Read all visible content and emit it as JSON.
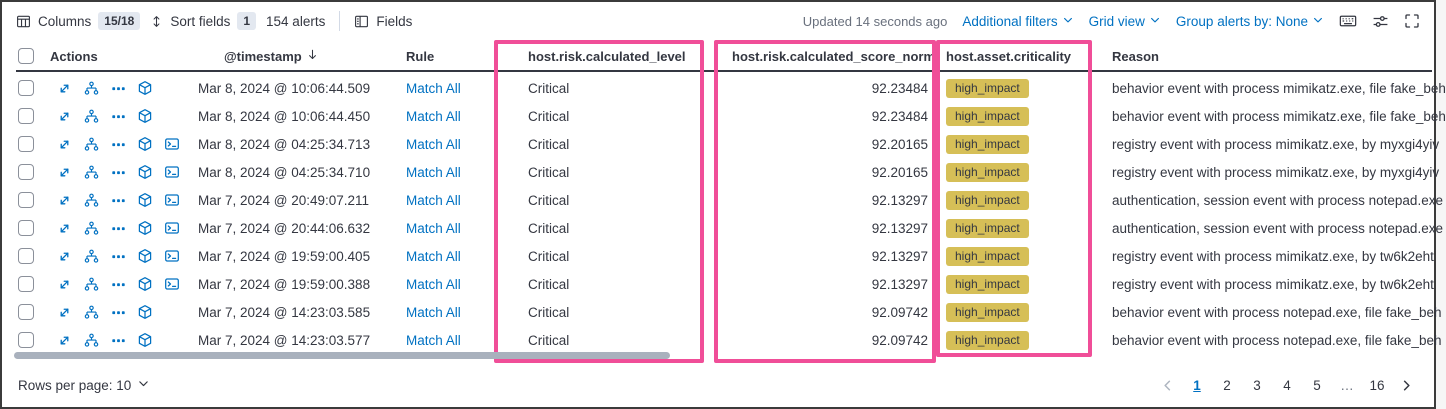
{
  "colors": {
    "accent_pink": "#F04E98",
    "link_blue": "#0071C2",
    "badge_yellow": "#D6BF57"
  },
  "toolbar": {
    "columns_label": "Columns",
    "columns_badge": "15/18",
    "sort_label": "Sort fields",
    "sort_badge": "1",
    "alerts_count": "154 alerts",
    "fields_label": "Fields",
    "updated": "Updated 14 seconds ago",
    "additional_filters_label": "Additional filters",
    "grid_view_label": "Grid view",
    "group_alerts_label": "Group alerts by: None"
  },
  "table": {
    "headers": {
      "actions": "Actions",
      "timestamp": "@timestamp",
      "rule": "Rule",
      "risk_level": "host.risk.calculated_level",
      "risk_score": "host.risk.calculated_score_norm",
      "criticality": "host.asset.criticality",
      "reason": "Reason"
    },
    "rows": [
      {
        "timestamp": "Mar 8, 2024 @ 10:06:44.509",
        "rule": "Match All",
        "level": "Critical",
        "score": "92.23484",
        "criticality": "high_impact",
        "reason": "behavior event with process mimikatz.exe, file fake_beh",
        "has_terminal": false
      },
      {
        "timestamp": "Mar 8, 2024 @ 10:06:44.450",
        "rule": "Match All",
        "level": "Critical",
        "score": "92.23484",
        "criticality": "high_impact",
        "reason": "behavior event with process mimikatz.exe, file fake_beh",
        "has_terminal": false
      },
      {
        "timestamp": "Mar 8, 2024 @ 04:25:34.713",
        "rule": "Match All",
        "level": "Critical",
        "score": "92.20165",
        "criticality": "high_impact",
        "reason": "registry event with process mimikatz.exe, by myxgi4yiv",
        "has_terminal": true
      },
      {
        "timestamp": "Mar 8, 2024 @ 04:25:34.710",
        "rule": "Match All",
        "level": "Critical",
        "score": "92.20165",
        "criticality": "high_impact",
        "reason": "registry event with process mimikatz.exe, by myxgi4yiv",
        "has_terminal": true
      },
      {
        "timestamp": "Mar 7, 2024 @ 20:49:07.211",
        "rule": "Match All",
        "level": "Critical",
        "score": "92.13297",
        "criticality": "high_impact",
        "reason": "authentication, session event with process notepad.exe",
        "has_terminal": true
      },
      {
        "timestamp": "Mar 7, 2024 @ 20:44:06.632",
        "rule": "Match All",
        "level": "Critical",
        "score": "92.13297",
        "criticality": "high_impact",
        "reason": "authentication, session event with process notepad.exe",
        "has_terminal": true
      },
      {
        "timestamp": "Mar 7, 2024 @ 19:59:00.405",
        "rule": "Match All",
        "level": "Critical",
        "score": "92.13297",
        "criticality": "high_impact",
        "reason": "registry event with process mimikatz.exe, by tw6k2eht",
        "has_terminal": true
      },
      {
        "timestamp": "Mar 7, 2024 @ 19:59:00.388",
        "rule": "Match All",
        "level": "Critical",
        "score": "92.13297",
        "criticality": "high_impact",
        "reason": "registry event with process mimikatz.exe, by tw6k2eht",
        "has_terminal": true
      },
      {
        "timestamp": "Mar 7, 2024 @ 14:23:03.585",
        "rule": "Match All",
        "level": "Critical",
        "score": "92.09742",
        "criticality": "high_impact",
        "reason": "behavior event with process notepad.exe, file fake_beh",
        "has_terminal": false
      },
      {
        "timestamp": "Mar 7, 2024 @ 14:23:03.577",
        "rule": "Match All",
        "level": "Critical",
        "score": "92.09742",
        "criticality": "high_impact",
        "reason": "behavior event with process notepad.exe, file fake_beh",
        "has_terminal": false
      }
    ]
  },
  "footer": {
    "rows_per_page": "Rows per page: 10",
    "pages": [
      "1",
      "2",
      "3",
      "4",
      "5",
      "…",
      "16"
    ],
    "current_page": "1"
  }
}
